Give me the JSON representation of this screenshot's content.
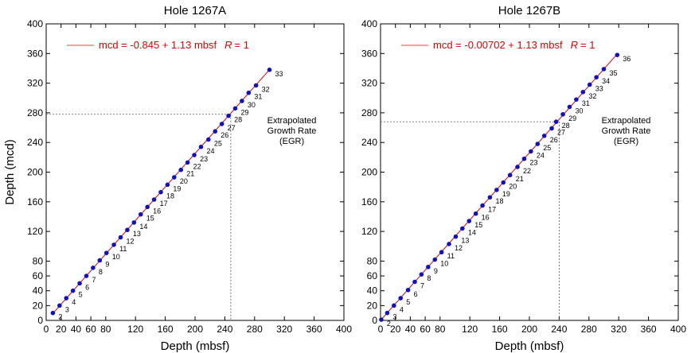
{
  "chart_data": [
    {
      "type": "scatter",
      "title": "Hole 1267A",
      "xlabel": "Depth (mbsf)",
      "ylabel": "Depth (mcd)",
      "xlim": [
        0,
        400
      ],
      "ylim": [
        0,
        400
      ],
      "xticks": [
        "0",
        "20",
        "40",
        "60",
        "80",
        "120",
        "160",
        "200",
        "240",
        "280",
        "320",
        "360",
        "400"
      ],
      "xtick_values": [
        0,
        20,
        40,
        60,
        80,
        120,
        160,
        200,
        240,
        280,
        320,
        360,
        400
      ],
      "yticks": [
        "0",
        "20",
        "40",
        "60",
        "80",
        "120",
        "160",
        "200",
        "240",
        "280",
        "320",
        "360",
        "400"
      ],
      "ytick_values": [
        0,
        20,
        40,
        60,
        80,
        120,
        160,
        200,
        240,
        280,
        320,
        360,
        400
      ],
      "grid": false,
      "legend": "top-left",
      "equation": "mcd = -0.845 + 1.13 mbsf",
      "r_label": "R",
      "r_value": "= 1",
      "fit": {
        "intercept": -0.845,
        "slope": 1.13
      },
      "annotation": [
        "Extrapolated",
        "Growth Rate",
        "(EGR)"
      ],
      "egr_guide": {
        "x": 248,
        "y": 278
      },
      "series": [
        {
          "labels": [
            "2",
            "3",
            "4",
            "5",
            "6",
            "7",
            "8",
            "9",
            "10",
            "11",
            "12",
            "13",
            "14",
            "15",
            "16",
            "17",
            "18",
            "19",
            "20",
            "21",
            "22",
            "23",
            "24",
            "25",
            "26",
            "27",
            "28",
            "29",
            "30",
            "31",
            "32",
            "33"
          ],
          "x": [
            9,
            18,
            27,
            36,
            45,
            54,
            63,
            72,
            81,
            91,
            100,
            109,
            118,
            127,
            136,
            145,
            154,
            163,
            172,
            181,
            190,
            199,
            208,
            218,
            227,
            236,
            245,
            254,
            263,
            272,
            282,
            300
          ],
          "y": [
            10,
            20,
            30,
            40,
            50,
            60,
            71,
            81,
            91,
            102,
            112,
            122,
            132,
            143,
            153,
            163,
            173,
            183,
            193,
            203,
            213,
            223,
            234,
            244,
            255,
            265,
            276,
            286,
            296,
            307,
            317,
            338
          ]
        }
      ],
      "colors": {
        "points": "#1010c8",
        "fit_line": "#e00000",
        "equation": "#e00000",
        "guide": "#555555"
      }
    },
    {
      "type": "scatter",
      "title": "Hole 1267B",
      "xlabel": "Depth (mbsf)",
      "ylabel": "",
      "xlim": [
        0,
        400
      ],
      "ylim": [
        0,
        400
      ],
      "xticks": [
        "0",
        "20",
        "40",
        "60",
        "80",
        "120",
        "160",
        "200",
        "240",
        "280",
        "320",
        "360",
        "400"
      ],
      "xtick_values": [
        0,
        20,
        40,
        60,
        80,
        120,
        160,
        200,
        240,
        280,
        320,
        360,
        400
      ],
      "yticks": [
        "0",
        "20",
        "40",
        "60",
        "80",
        "120",
        "160",
        "200",
        "240",
        "280",
        "320",
        "360",
        "400"
      ],
      "ytick_values": [
        0,
        20,
        40,
        60,
        80,
        120,
        160,
        200,
        240,
        280,
        320,
        360,
        400
      ],
      "grid": false,
      "legend": "top-left",
      "equation": "mcd = -0.00702 + 1.13 mbsf",
      "r_label": "R",
      "r_value": "= 1",
      "fit": {
        "intercept": -0.00702,
        "slope": 1.13
      },
      "annotation": [
        "Extrapolated",
        "Growth Rate",
        "(EGR)"
      ],
      "egr_guide": {
        "x": 240,
        "y": 268
      },
      "series": [
        {
          "labels": [
            "2",
            "3",
            "4",
            "5",
            "6",
            "7",
            "8",
            "9",
            "10",
            "11",
            "12",
            "13",
            "14",
            "15",
            "16",
            "17",
            "18",
            "19",
            "20",
            "21",
            "22",
            "23",
            "24",
            "25",
            "26",
            "27",
            "28",
            "29",
            "30",
            "31",
            "32",
            "33",
            "34",
            "35",
            "36"
          ],
          "x": [
            1,
            9,
            18,
            27,
            37,
            46,
            55,
            64,
            73,
            82,
            92,
            101,
            110,
            119,
            128,
            137,
            147,
            156,
            165,
            174,
            184,
            193,
            202,
            211,
            220,
            230,
            236,
            245,
            254,
            263,
            272,
            281,
            290,
            300,
            318
          ],
          "y": [
            1,
            10,
            20,
            30,
            41,
            52,
            62,
            72,
            82,
            92,
            103,
            113,
            124,
            134,
            144,
            155,
            166,
            176,
            186,
            196,
            207,
            218,
            228,
            238,
            249,
            259,
            268,
            278,
            288,
            298,
            308,
            318,
            328,
            339,
            358
          ]
        }
      ],
      "colors": {
        "points": "#1010c8",
        "fit_line": "#e00000",
        "equation": "#e00000",
        "guide": "#555555"
      }
    }
  ]
}
